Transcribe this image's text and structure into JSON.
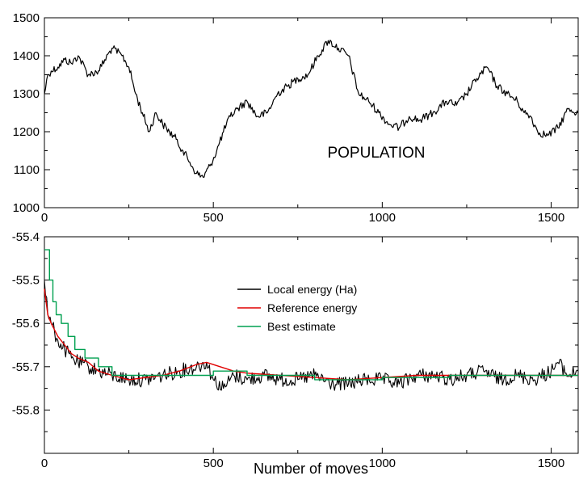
{
  "chart_data": [
    {
      "type": "line",
      "xlim": [
        0,
        1580
      ],
      "ylim": [
        1000,
        1500
      ],
      "x_ticks": [
        0,
        500,
        1000,
        1500
      ],
      "y_ticks": [
        1000,
        1100,
        1200,
        1300,
        1400,
        1500
      ],
      "annotation": "POPULATION",
      "grid": false,
      "series": [
        {
          "color": "#000000",
          "x": [
            0,
            10,
            20,
            40,
            60,
            80,
            100,
            130,
            160,
            200,
            230,
            250,
            270,
            290,
            310,
            330,
            350,
            370,
            390,
            410,
            430,
            450,
            470,
            490,
            510,
            530,
            550,
            570,
            600,
            630,
            660,
            690,
            720,
            750,
            780,
            810,
            840,
            870,
            900,
            930,
            960,
            990,
            1020,
            1050,
            1080,
            1110,
            1150,
            1190,
            1220,
            1250,
            1280,
            1310,
            1340,
            1370,
            1400,
            1420,
            1440,
            1460,
            1490,
            1520,
            1550,
            1580
          ],
          "values": [
            1300,
            1350,
            1360,
            1370,
            1390,
            1380,
            1400,
            1350,
            1360,
            1420,
            1400,
            1370,
            1300,
            1250,
            1200,
            1250,
            1220,
            1200,
            1180,
            1150,
            1120,
            1090,
            1080,
            1110,
            1150,
            1200,
            1240,
            1260,
            1280,
            1240,
            1250,
            1300,
            1320,
            1340,
            1350,
            1400,
            1440,
            1420,
            1400,
            1300,
            1280,
            1250,
            1220,
            1210,
            1240,
            1230,
            1250,
            1280,
            1270,
            1300,
            1340,
            1370,
            1320,
            1300,
            1280,
            1250,
            1240,
            1200,
            1190,
            1210,
            1260,
            1250
          ]
        }
      ]
    },
    {
      "type": "line",
      "xlim": [
        0,
        1580
      ],
      "ylim": [
        -55.9,
        -55.4
      ],
      "x_ticks": [
        0,
        500,
        1000,
        1500
      ],
      "y_ticks": [
        -55.8,
        -55.7,
        -55.6,
        -55.5,
        -55.4
      ],
      "xlabel": "Number of moves",
      "grid": false,
      "legend_position": "center",
      "series": [
        {
          "name": "Local energy (Ha)",
          "color": "#000000",
          "x": [
            0,
            10,
            20,
            30,
            40,
            60,
            80,
            100,
            130,
            160,
            200,
            250,
            300,
            350,
            400,
            450,
            480,
            500,
            530,
            560,
            600,
            650,
            700,
            750,
            800,
            850,
            900,
            950,
            1000,
            1050,
            1100,
            1150,
            1200,
            1250,
            1300,
            1350,
            1400,
            1450,
            1500,
            1520,
            1550,
            1580
          ],
          "values": [
            -55.5,
            -55.58,
            -55.6,
            -55.62,
            -55.64,
            -55.66,
            -55.68,
            -55.69,
            -55.7,
            -55.71,
            -55.72,
            -55.73,
            -55.73,
            -55.72,
            -55.71,
            -55.7,
            -55.69,
            -55.73,
            -55.75,
            -55.72,
            -55.73,
            -55.72,
            -55.73,
            -55.73,
            -55.72,
            -55.74,
            -55.74,
            -55.73,
            -55.73,
            -55.74,
            -55.72,
            -55.72,
            -55.73,
            -55.72,
            -55.71,
            -55.73,
            -55.72,
            -55.73,
            -55.71,
            -55.69,
            -55.72,
            -55.71
          ]
        },
        {
          "name": "Reference energy",
          "color": "#e00000",
          "x": [
            0,
            10,
            20,
            40,
            60,
            80,
            100,
            130,
            160,
            200,
            250,
            300,
            350,
            400,
            450,
            480,
            520,
            560,
            600,
            700,
            800,
            900,
            1000,
            1100,
            1200,
            1300,
            1400,
            1500,
            1580
          ],
          "values": [
            -55.52,
            -55.58,
            -55.6,
            -55.63,
            -55.65,
            -55.67,
            -55.68,
            -55.69,
            -55.71,
            -55.72,
            -55.73,
            -55.725,
            -55.72,
            -55.71,
            -55.695,
            -55.69,
            -55.7,
            -55.71,
            -55.715,
            -55.72,
            -55.725,
            -55.73,
            -55.725,
            -55.72,
            -55.72,
            -55.72,
            -55.72,
            -55.72,
            -55.72
          ]
        },
        {
          "name": "Best estimate",
          "color": "#00a050",
          "x": [
            0,
            10,
            15,
            25,
            35,
            50,
            70,
            90,
            120,
            160,
            200,
            250,
            300,
            400,
            500,
            600,
            800,
            1000,
            1200,
            1400,
            1580
          ],
          "values": [
            -55.43,
            -55.43,
            -55.5,
            -55.55,
            -55.58,
            -55.6,
            -55.63,
            -55.66,
            -55.68,
            -55.7,
            -55.72,
            -55.72,
            -55.72,
            -55.72,
            -55.71,
            -55.72,
            -55.73,
            -55.725,
            -55.72,
            -55.72,
            -55.72
          ]
        }
      ]
    }
  ]
}
